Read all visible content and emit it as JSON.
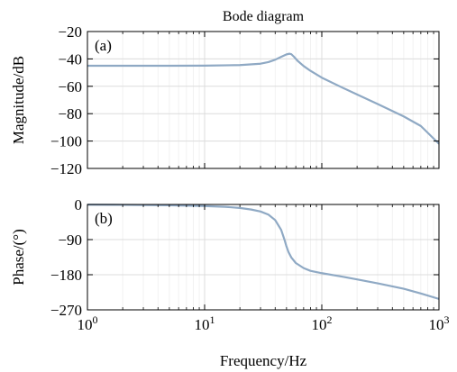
{
  "colors": {
    "curve": "#8fa9c4",
    "major_grid": "#dcdcdc",
    "minor_grid": "#efefef",
    "axes": "#000000"
  },
  "chart_data": [
    {
      "type": "line",
      "title": "Bode diagram",
      "panel_label": "(a)",
      "xlabel": "",
      "ylabel": "Magnitude/dB",
      "xscale": "log",
      "xlim": [
        1,
        1000
      ],
      "ylim": [
        -120,
        -20
      ],
      "x_tick_labels": [
        "10^0",
        "10^1",
        "10^2",
        "10^3"
      ],
      "y_ticks": [
        -20,
        -40,
        -60,
        -80,
        -100,
        -120
      ],
      "y_tick_labels": [
        "−20",
        "−40",
        "−60",
        "−80",
        "−100",
        "−120"
      ],
      "grid": true,
      "series": [
        {
          "x": [
            1,
            2,
            5,
            10,
            20,
            30,
            35,
            40,
            45,
            50,
            53,
            55,
            58,
            62,
            70,
            80,
            100,
            150,
            200,
            300,
            500,
            700,
            1000
          ],
          "y": [
            -45,
            -45,
            -45,
            -44.9,
            -44.5,
            -43.5,
            -42.3,
            -40.6,
            -38.5,
            -36.7,
            -36.2,
            -36.6,
            -38.5,
            -41.3,
            -45.2,
            -48.7,
            -53.7,
            -61,
            -66,
            -73,
            -82,
            -89,
            -102
          ]
        }
      ]
    },
    {
      "type": "line",
      "title": "",
      "panel_label": "(b)",
      "xlabel": "Frequency/Hz",
      "ylabel": "Phase/(°)",
      "xscale": "log",
      "xlim": [
        1,
        1000
      ],
      "ylim": [
        -270,
        0
      ],
      "x_tick_labels": [
        "10^0",
        "10^1",
        "10^2",
        "10^3"
      ],
      "y_ticks": [
        0,
        -90,
        -180,
        -270
      ],
      "y_tick_labels": [
        "0",
        "−90",
        "−180",
        "−270"
      ],
      "grid": true,
      "series": [
        {
          "x": [
            1,
            2,
            5,
            10,
            15,
            20,
            25,
            30,
            35,
            40,
            45,
            48,
            50,
            52,
            55,
            60,
            70,
            80,
            100,
            150,
            200,
            300,
            500,
            700,
            1000
          ],
          "y": [
            -0.5,
            -1,
            -2,
            -4,
            -6,
            -9,
            -13,
            -18,
            -26,
            -40,
            -65,
            -90,
            -108,
            -122,
            -136,
            -150,
            -163,
            -170,
            -176,
            -185,
            -192,
            -202,
            -216,
            -228,
            -242
          ]
        }
      ]
    }
  ]
}
